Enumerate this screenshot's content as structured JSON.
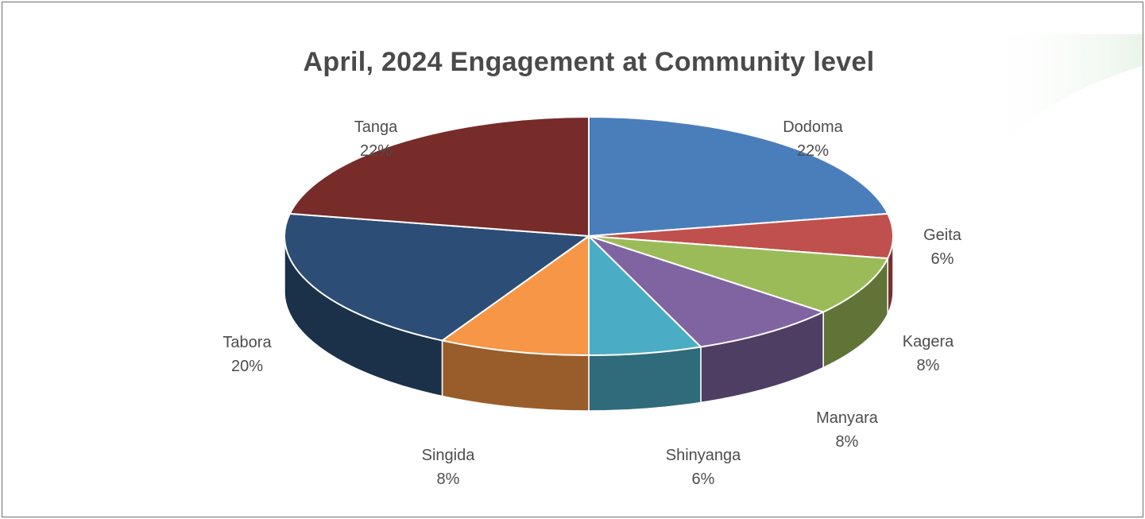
{
  "chart_data": {
    "type": "pie",
    "title": "April, 2024 Engagement at Community level",
    "categories": [
      "Dodoma",
      "Geita",
      "Kagera",
      "Manyara",
      "Shinyanga",
      "Singida",
      "Tabora",
      "Tanga"
    ],
    "values": [
      22,
      6,
      8,
      8,
      6,
      8,
      20,
      22
    ],
    "value_labels": [
      "22%",
      "6%",
      "8%",
      "8%",
      "6%",
      "8%",
      "20%",
      "22%"
    ],
    "colors": [
      "#4a7ebb",
      "#c0504d",
      "#9bbb59",
      "#8064a2",
      "#4bacc6",
      "#f79646",
      "#2c4d75",
      "#772c2a"
    ],
    "style": "3d-exploded-pie",
    "legend": "none"
  }
}
